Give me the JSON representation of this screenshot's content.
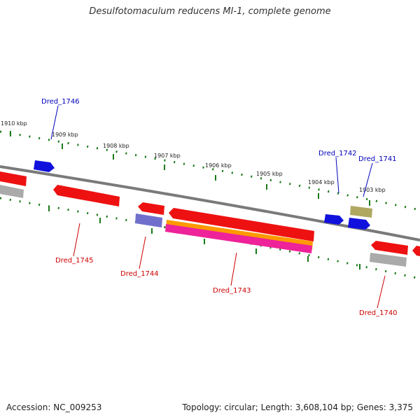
{
  "title": "Desulfotomaculum reducens MI-1, complete genome",
  "footer": {
    "accession": "Accession: NC_009253",
    "topology": "Topology: circular; Length: 3,608,104 bp; Genes: 3,375"
  },
  "colors": {
    "backbone": "#7a7a7a",
    "scale_dots": "#1a7a1a",
    "label_forward": "#0000bb",
    "label_reverse": "#cc0000",
    "gene_red": "#ee1111",
    "gene_blue": "#1111dd",
    "gene_grey": "#aaaaaa",
    "gene_olive": "#b0a860",
    "gene_violet": "#7070cc",
    "gene_orange": "#ff9900",
    "gene_pink": "#ee2299"
  },
  "scale_ticks": [
    {
      "label": "1910 kbp"
    },
    {
      "label": "1909 kbp"
    },
    {
      "label": "1908 kbp"
    },
    {
      "label": "1907 kbp"
    },
    {
      "label": "1906 kbp"
    },
    {
      "label": "1905 kbp"
    },
    {
      "label": "1904 kbp"
    },
    {
      "label": "1903 kbp"
    }
  ],
  "gene_labels": [
    {
      "name": "Dred_1746",
      "strand": "forward"
    },
    {
      "name": "Dred_1742",
      "strand": "forward"
    },
    {
      "name": "Dred_1741",
      "strand": "forward"
    },
    {
      "name": "Dred_1745",
      "strand": "reverse"
    },
    {
      "name": "Dred_1744",
      "strand": "reverse"
    },
    {
      "name": "Dred_1743",
      "strand": "reverse"
    },
    {
      "name": "Dred_1740",
      "strand": "reverse"
    }
  ]
}
